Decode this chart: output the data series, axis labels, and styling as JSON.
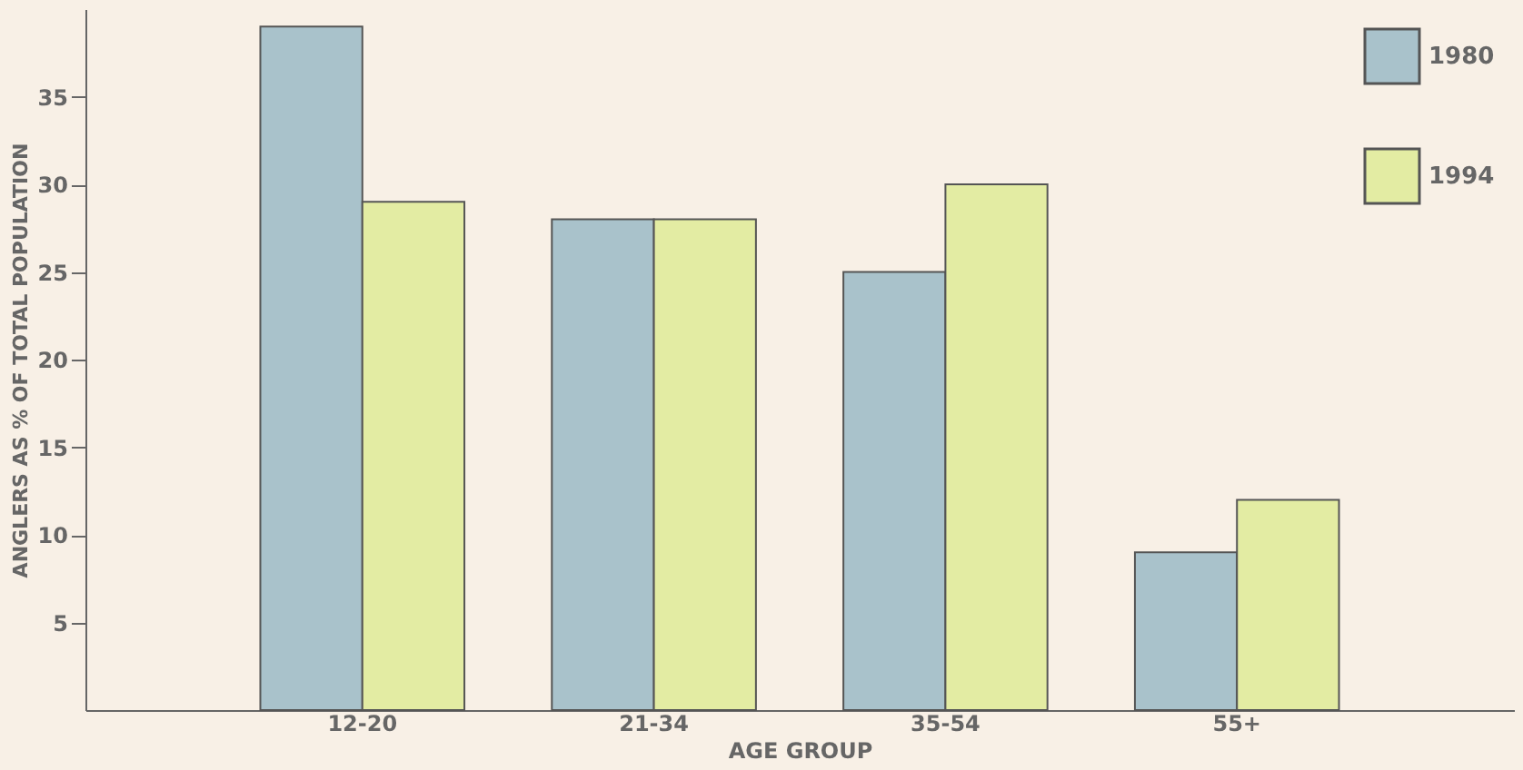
{
  "chart_data": {
    "type": "bar",
    "xlabel": "AGE GROUP",
    "ylabel": "ANGLERS AS % OF TOTAL POPULATION",
    "categories": [
      "12-20",
      "21-34",
      "35-54",
      "55+"
    ],
    "series": [
      {
        "name": "1980",
        "color": "#a9c2cb",
        "values": [
          39,
          28,
          25,
          9
        ]
      },
      {
        "name": "1994",
        "color": "#e3eca3",
        "values": [
          29,
          28,
          30,
          12
        ]
      }
    ],
    "ylim": [
      0,
      40
    ],
    "yticks": [
      5,
      10,
      15,
      20,
      25,
      30,
      35
    ],
    "grid": false,
    "legend": "top right"
  }
}
